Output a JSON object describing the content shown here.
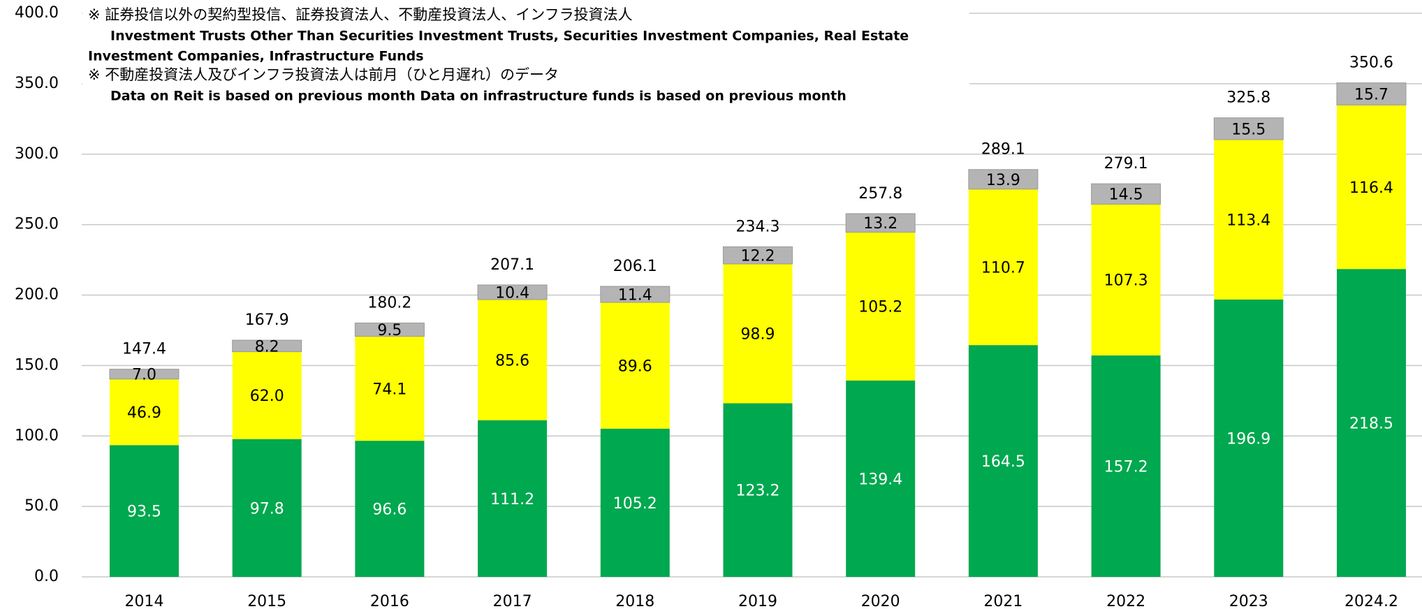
{
  "chart_data": {
    "type": "stacked_bar",
    "annotations": [
      "※ 証券投信以外の契約型投信、証券投資法人、不動産投資法人、インフラ投資法人",
      "Investment Trusts Other Than Securities Investment Trusts, Securities Investment Companies, Real Estate",
      "Investment Companies, Infrastructure Funds",
      "※ 不動産投資法人及びインフラ投資法人は前月（ひと月遅れ）のデータ",
      "Data on Reit is based on previous month Data on infrastructure funds is based on previous month"
    ],
    "categories": [
      "2014",
      "2015",
      "2016",
      "2017",
      "2018",
      "2019",
      "2020",
      "2021",
      "2022",
      "2023",
      "2024.2"
    ],
    "series": [
      {
        "color": "#00a84f",
        "values": [
          93.5,
          97.8,
          96.6,
          111.2,
          105.2,
          123.2,
          139.4,
          164.5,
          157.2,
          196.9,
          218.5
        ],
        "value_labels": [
          "93.5",
          "97.8",
          "96.6",
          "111.2",
          "105.2",
          "123.2",
          "139.4",
          "164.5",
          "157.2",
          "196.9",
          "218.5"
        ]
      },
      {
        "color": "#ffff00",
        "values": [
          46.9,
          62.0,
          74.1,
          85.6,
          89.6,
          98.9,
          105.2,
          110.7,
          107.3,
          113.4,
          116.4
        ],
        "value_labels": [
          "46.9",
          "62.0",
          "74.1",
          "85.6",
          "89.6",
          "98.9",
          "105.2",
          "110.7",
          "107.3",
          "113.4",
          "116.4"
        ]
      },
      {
        "color": "#b4b4b4",
        "values": [
          7.0,
          8.2,
          9.5,
          10.4,
          11.4,
          12.2,
          13.2,
          13.9,
          14.5,
          15.5,
          15.7
        ],
        "value_labels": [
          "7.0",
          "8.2",
          "9.5",
          "10.4",
          "11.4",
          "12.2",
          "13.2",
          "13.9",
          "14.5",
          "15.5",
          "15.7"
        ]
      }
    ],
    "totals": [
      147.4,
      167.9,
      180.2,
      207.1,
      206.1,
      234.3,
      257.8,
      289.1,
      279.1,
      325.8,
      350.6
    ],
    "ylim": [
      0,
      400
    ],
    "yticks": [
      {
        "value": 0,
        "label": "0.0"
      },
      {
        "value": 50,
        "label": "50.0"
      },
      {
        "value": 100,
        "label": "100.0"
      },
      {
        "value": 150,
        "label": "150.0"
      },
      {
        "value": 200,
        "label": "200.0"
      },
      {
        "value": 250,
        "label": "250.0"
      },
      {
        "value": 300,
        "label": "300.0"
      },
      {
        "value": 350,
        "label": "350.0"
      },
      {
        "value": 400,
        "label": "400.0"
      }
    ],
    "grid": true
  }
}
